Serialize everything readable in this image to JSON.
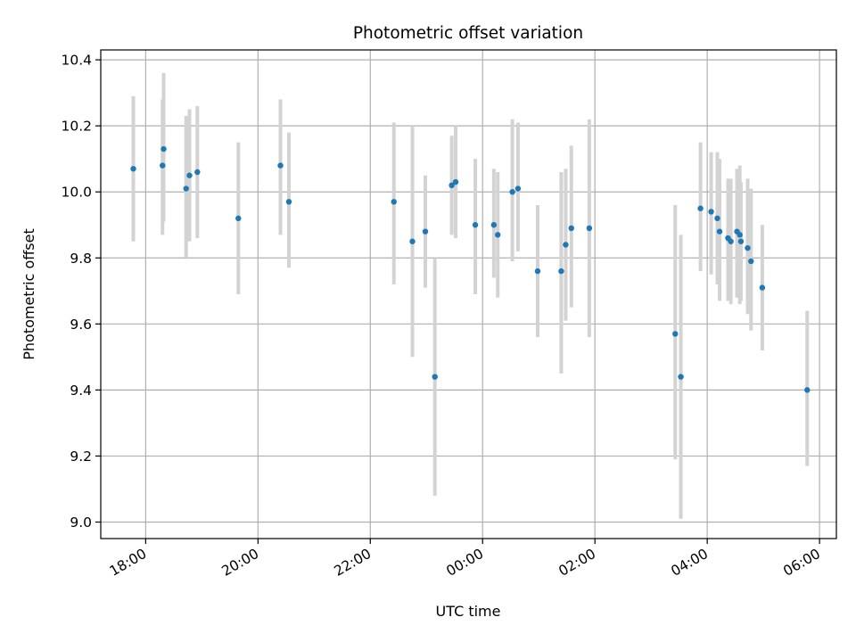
{
  "chart_data": {
    "type": "scatter",
    "title": "Photometric offset variation",
    "xlabel": "UTC time",
    "ylabel": "Photometric offset",
    "x_unit": "hours relative to 00:00 UTC (negative = previous day)",
    "xlim": [
      -6.8,
      6.3
    ],
    "ylim": [
      8.95,
      10.43
    ],
    "x_ticks": [
      {
        "value": -6,
        "label": "18:00"
      },
      {
        "value": -4,
        "label": "20:00"
      },
      {
        "value": -2,
        "label": "22:00"
      },
      {
        "value": 0,
        "label": "00:00"
      },
      {
        "value": 2,
        "label": "02:00"
      },
      {
        "value": 4,
        "label": "04:00"
      },
      {
        "value": 6,
        "label": "06:00"
      }
    ],
    "y_ticks": [
      {
        "value": 9.0,
        "label": "9.0"
      },
      {
        "value": 9.2,
        "label": "9.2"
      },
      {
        "value": 9.4,
        "label": "9.4"
      },
      {
        "value": 9.6,
        "label": "9.6"
      },
      {
        "value": 9.8,
        "label": "9.8"
      },
      {
        "value": 10.0,
        "label": "10.0"
      },
      {
        "value": 10.2,
        "label": "10.2"
      },
      {
        "value": 10.4,
        "label": "10.4"
      }
    ],
    "grid": true,
    "colors": {
      "points": "#1f77b4",
      "errorbars": "#d3d3d3",
      "grid": "#b0b0b0"
    },
    "points": [
      {
        "x": -6.22,
        "y": 10.07,
        "lo": 9.85,
        "hi": 10.29
      },
      {
        "x": -5.7,
        "y": 10.08,
        "lo": 9.87,
        "hi": 10.28
      },
      {
        "x": -5.68,
        "y": 10.13,
        "lo": 9.91,
        "hi": 10.36
      },
      {
        "x": -5.28,
        "y": 10.01,
        "lo": 9.8,
        "hi": 10.23
      },
      {
        "x": -5.22,
        "y": 10.05,
        "lo": 9.85,
        "hi": 10.25
      },
      {
        "x": -5.08,
        "y": 10.06,
        "lo": 9.86,
        "hi": 10.26
      },
      {
        "x": -4.35,
        "y": 9.92,
        "lo": 9.69,
        "hi": 10.15
      },
      {
        "x": -3.6,
        "y": 10.08,
        "lo": 9.87,
        "hi": 10.28
      },
      {
        "x": -3.45,
        "y": 9.97,
        "lo": 9.77,
        "hi": 10.18
      },
      {
        "x": -1.58,
        "y": 9.97,
        "lo": 9.72,
        "hi": 10.21
      },
      {
        "x": -1.25,
        "y": 9.85,
        "lo": 9.5,
        "hi": 10.2
      },
      {
        "x": -1.02,
        "y": 9.88,
        "lo": 9.71,
        "hi": 10.05
      },
      {
        "x": -0.85,
        "y": 9.44,
        "lo": 9.08,
        "hi": 9.8
      },
      {
        "x": -0.55,
        "y": 10.02,
        "lo": 9.87,
        "hi": 10.17
      },
      {
        "x": -0.48,
        "y": 10.03,
        "lo": 9.86,
        "hi": 10.2
      },
      {
        "x": -0.13,
        "y": 9.9,
        "lo": 9.69,
        "hi": 10.1
      },
      {
        "x": 0.2,
        "y": 9.9,
        "lo": 9.74,
        "hi": 10.07
      },
      {
        "x": 0.27,
        "y": 9.87,
        "lo": 9.68,
        "hi": 10.06
      },
      {
        "x": 0.53,
        "y": 10.0,
        "lo": 9.79,
        "hi": 10.22
      },
      {
        "x": 0.63,
        "y": 10.01,
        "lo": 9.82,
        "hi": 10.21
      },
      {
        "x": 0.98,
        "y": 9.76,
        "lo": 9.56,
        "hi": 9.96
      },
      {
        "x": 1.4,
        "y": 9.76,
        "lo": 9.45,
        "hi": 10.06
      },
      {
        "x": 1.48,
        "y": 9.84,
        "lo": 9.61,
        "hi": 10.07
      },
      {
        "x": 1.58,
        "y": 9.89,
        "lo": 9.65,
        "hi": 10.14
      },
      {
        "x": 1.9,
        "y": 9.89,
        "lo": 9.56,
        "hi": 10.22
      },
      {
        "x": 3.43,
        "y": 9.57,
        "lo": 9.19,
        "hi": 9.96
      },
      {
        "x": 3.53,
        "y": 9.44,
        "lo": 9.01,
        "hi": 9.87
      },
      {
        "x": 3.88,
        "y": 9.95,
        "lo": 9.76,
        "hi": 10.15
      },
      {
        "x": 4.07,
        "y": 9.94,
        "lo": 9.75,
        "hi": 10.12
      },
      {
        "x": 4.18,
        "y": 9.92,
        "lo": 9.72,
        "hi": 10.12
      },
      {
        "x": 4.22,
        "y": 9.88,
        "lo": 9.67,
        "hi": 10.1
      },
      {
        "x": 4.37,
        "y": 9.86,
        "lo": 9.67,
        "hi": 10.04
      },
      {
        "x": 4.42,
        "y": 9.85,
        "lo": 9.66,
        "hi": 10.04
      },
      {
        "x": 4.53,
        "y": 9.88,
        "lo": 9.68,
        "hi": 10.07
      },
      {
        "x": 4.58,
        "y": 9.87,
        "lo": 9.66,
        "hi": 10.08
      },
      {
        "x": 4.6,
        "y": 9.85,
        "lo": 9.67,
        "hi": 10.03
      },
      {
        "x": 4.72,
        "y": 9.83,
        "lo": 9.63,
        "hi": 10.04
      },
      {
        "x": 4.78,
        "y": 9.79,
        "lo": 9.58,
        "hi": 10.01
      },
      {
        "x": 4.98,
        "y": 9.71,
        "lo": 9.52,
        "hi": 9.9
      },
      {
        "x": 5.78,
        "y": 9.4,
        "lo": 9.17,
        "hi": 9.64
      }
    ]
  }
}
